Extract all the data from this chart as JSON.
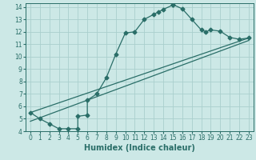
{
  "title": "",
  "xlabel": "Humidex (Indice chaleur)",
  "bg_color": "#cce8e6",
  "grid_color": "#aacfcd",
  "line_color": "#2a6e68",
  "spine_color": "#2a6e68",
  "xlim": [
    -0.5,
    23.5
  ],
  "ylim": [
    4,
    14.3
  ],
  "xticks": [
    0,
    1,
    2,
    3,
    4,
    5,
    6,
    7,
    8,
    9,
    10,
    11,
    12,
    13,
    14,
    15,
    16,
    17,
    18,
    19,
    20,
    21,
    22,
    23
  ],
  "yticks": [
    4,
    5,
    6,
    7,
    8,
    9,
    10,
    11,
    12,
    13,
    14
  ],
  "curve1_x": [
    0,
    1,
    2,
    3,
    4,
    5,
    5,
    6,
    6,
    7,
    8,
    9,
    10,
    11,
    12,
    13,
    13.5,
    14,
    15,
    15,
    16,
    17,
    18,
    18.5,
    19,
    20,
    21,
    22,
    23
  ],
  "curve1_y": [
    5.5,
    5.0,
    4.6,
    4.2,
    4.2,
    4.2,
    5.2,
    5.3,
    6.5,
    7.0,
    8.3,
    10.2,
    11.9,
    12.0,
    13.0,
    13.4,
    13.6,
    13.8,
    14.15,
    14.2,
    13.85,
    13.0,
    12.15,
    12.0,
    12.15,
    12.05,
    11.55,
    11.4,
    11.5
  ],
  "curve2_x": [
    0,
    23
  ],
  "curve2_y": [
    5.5,
    11.5
  ],
  "curve3_x": [
    0,
    23
  ],
  "curve3_y": [
    4.8,
    11.3
  ],
  "xlabel_fontsize": 7,
  "tick_fontsize": 5.5,
  "marker_size": 2.5,
  "line_width": 0.9
}
